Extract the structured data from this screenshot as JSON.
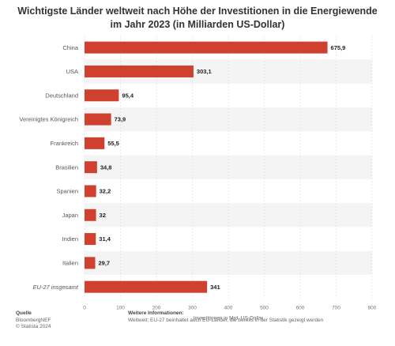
{
  "title": "Wichtigste Länder weltweit nach Höhe der Investitionen in die Energiewende im Jahr 2023 (in Milliarden US-Dollar)",
  "chart_data": {
    "type": "bar",
    "orientation": "horizontal",
    "categories": [
      "China",
      "USA",
      "Deutschland",
      "Vereinigtes Königreich",
      "Frankreich",
      "Brasilien",
      "Spanien",
      "Japan",
      "Indien",
      "Italien",
      "EU-27 insgesamt"
    ],
    "values": [
      675.9,
      303.1,
      95.4,
      73.9,
      55.5,
      34.8,
      32.2,
      32,
      31.4,
      29.7,
      341
    ],
    "value_labels": [
      "675,9",
      "303,1",
      "95,4",
      "73,9",
      "55,5",
      "34,8",
      "32,2",
      "32",
      "31,4",
      "29,7",
      "341"
    ],
    "italic_categories": [
      "EU-27 insgesamt"
    ],
    "xlabel": "Investitionen in Mrd. US-Dollar",
    "ylabel": "",
    "xlim": [
      0,
      800
    ],
    "xticks": [
      0,
      100,
      200,
      300,
      400,
      500,
      600,
      700,
      800
    ],
    "grid": true,
    "bar_color": "#d0402e",
    "stripe_color": "#f4f4f4"
  },
  "footer": {
    "source_heading": "Quelle",
    "source_lines": [
      "BloombergNEF",
      "© Statista 2024"
    ],
    "info_heading": "Weitere Informationen:",
    "info_text": "Weltweit; EU-27 beinhaltet auch EU-Länder, die bereits in der Statistik gezeigt werden"
  }
}
